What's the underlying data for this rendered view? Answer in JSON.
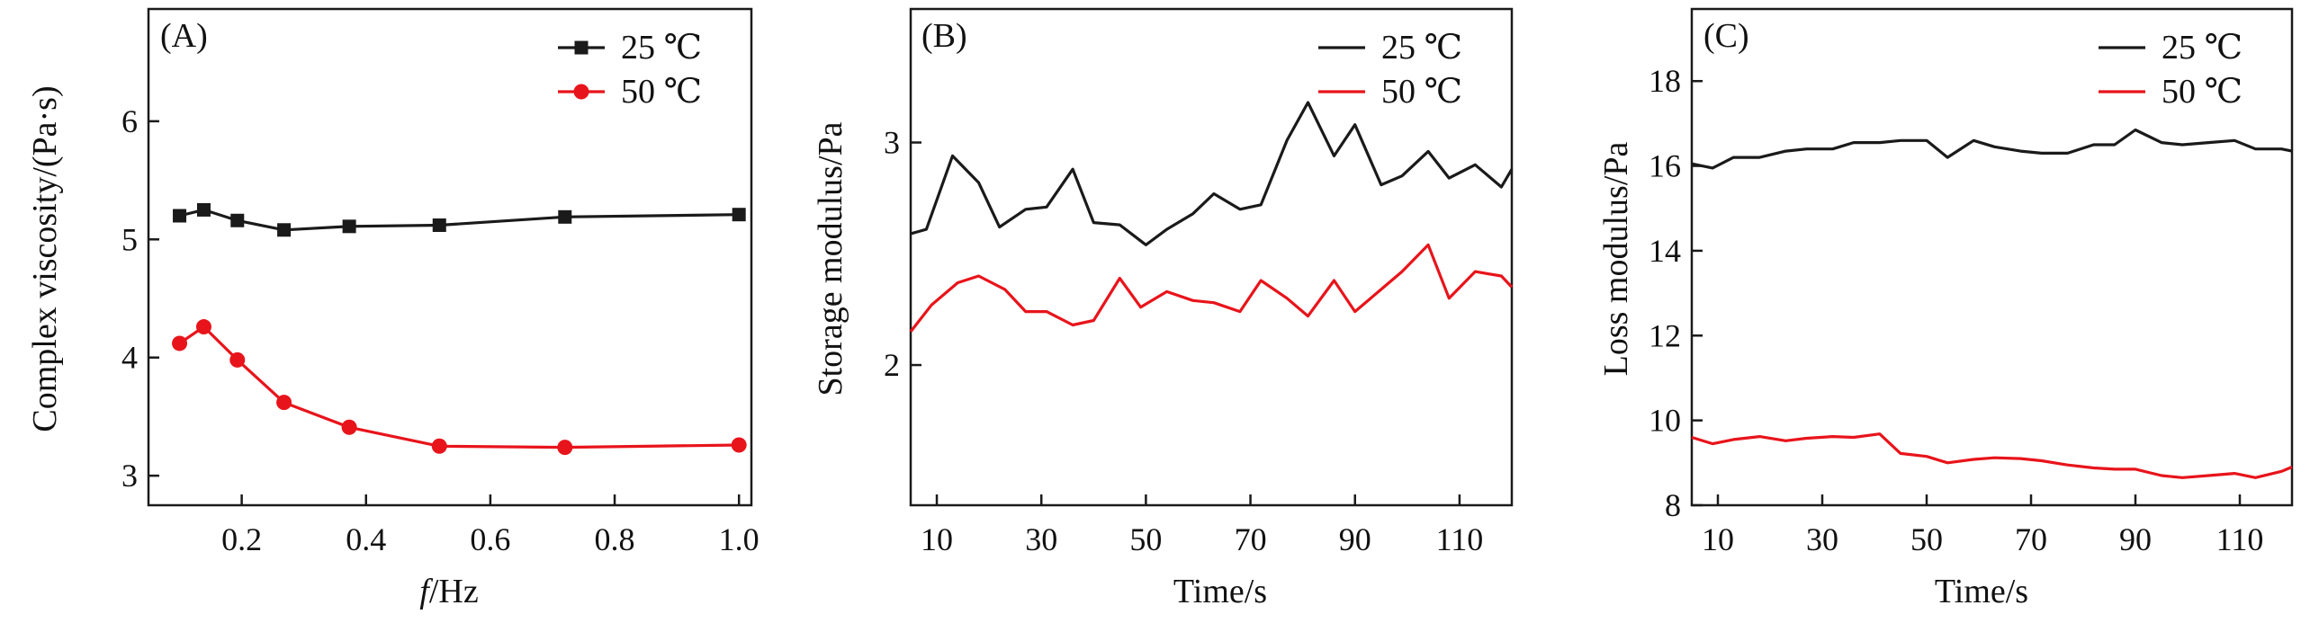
{
  "chart_data": [
    {
      "type": "line",
      "panel_label": "(A)",
      "xlabel_italic": "f",
      "xlabel_rest": "/Hz",
      "ylabel": "Complex viscosity/(Pa·s)",
      "xlim": [
        0.05,
        1.02
      ],
      "ylim": [
        2.75,
        6.95
      ],
      "xticks": [
        0.2,
        0.4,
        0.6,
        0.8,
        1.0
      ],
      "xtick_labels": [
        "0.2",
        "0.4",
        "0.6",
        "0.8",
        "1.0"
      ],
      "yticks": [
        3,
        4,
        5,
        6
      ],
      "ytick_labels": [
        "3",
        "4",
        "5",
        "6"
      ],
      "legend_position": "top-right",
      "series": [
        {
          "name": "25 ℃",
          "color": "#1a1a1a",
          "marker": "square",
          "x": [
            0.1,
            0.139,
            0.193,
            0.268,
            0.373,
            0.518,
            0.72,
            1.0
          ],
          "y": [
            5.2,
            5.25,
            5.16,
            5.08,
            5.11,
            5.12,
            5.19,
            5.21
          ]
        },
        {
          "name": "50 ℃",
          "color": "#e8141b",
          "marker": "circle",
          "x": [
            0.1,
            0.139,
            0.193,
            0.268,
            0.373,
            0.518,
            0.72,
            1.0
          ],
          "y": [
            4.12,
            4.26,
            3.98,
            3.62,
            3.41,
            3.25,
            3.24,
            3.26
          ]
        }
      ]
    },
    {
      "type": "line",
      "panel_label": "(B)",
      "xlabel": "Time/s",
      "ylabel": "Storage modulus/Pa",
      "xlim": [
        5,
        120
      ],
      "ylim": [
        1.37,
        3.6
      ],
      "xticks": [
        10,
        30,
        50,
        70,
        90,
        110
      ],
      "xtick_labels": [
        "10",
        "30",
        "50",
        "70",
        "90",
        "110"
      ],
      "yticks": [
        2,
        3
      ],
      "ytick_labels": [
        "2",
        "3"
      ],
      "legend_position": "top-right",
      "series": [
        {
          "name": "25 ℃",
          "color": "#1a1a1a",
          "x": [
            5,
            8,
            13,
            18,
            22,
            27,
            31,
            36,
            40,
            45,
            50,
            54,
            59,
            63,
            68,
            72,
            77,
            81,
            86,
            90,
            95,
            99,
            104,
            108,
            113,
            118,
            120
          ],
          "y": [
            2.59,
            2.61,
            2.94,
            2.82,
            2.62,
            2.7,
            2.71,
            2.88,
            2.64,
            2.63,
            2.54,
            2.61,
            2.68,
            2.77,
            2.7,
            2.72,
            3.01,
            3.18,
            2.94,
            3.08,
            2.81,
            2.85,
            2.96,
            2.84,
            2.9,
            2.8,
            2.88
          ]
        },
        {
          "name": "50 ℃",
          "color": "#e8141b",
          "x": [
            5,
            9,
            14,
            18,
            23,
            27,
            31,
            36,
            40,
            45,
            49,
            54,
            59,
            63,
            68,
            72,
            77,
            81,
            86,
            90,
            95,
            99,
            104,
            108,
            113,
            118,
            120
          ],
          "y": [
            2.15,
            2.27,
            2.37,
            2.4,
            2.34,
            2.24,
            2.24,
            2.18,
            2.2,
            2.39,
            2.26,
            2.33,
            2.29,
            2.28,
            2.24,
            2.38,
            2.3,
            2.22,
            2.38,
            2.24,
            2.34,
            2.42,
            2.54,
            2.3,
            2.42,
            2.4,
            2.35
          ]
        }
      ]
    },
    {
      "type": "line",
      "panel_label": "(C)",
      "xlabel": "Time/s",
      "ylabel": "Loss modulus/Pa",
      "xlim": [
        5,
        120
      ],
      "ylim": [
        8,
        19.7
      ],
      "xticks": [
        10,
        30,
        50,
        70,
        90,
        110
      ],
      "xtick_labels": [
        "10",
        "30",
        "50",
        "70",
        "90",
        "110"
      ],
      "yticks": [
        8,
        10,
        12,
        14,
        16,
        18
      ],
      "ytick_labels": [
        "8",
        "10",
        "12",
        "14",
        "16",
        "18"
      ],
      "legend_position": "top-right",
      "series": [
        {
          "name": "25 ℃",
          "color": "#1a1a1a",
          "x": [
            5,
            9,
            13,
            18,
            23,
            27,
            32,
            36,
            41,
            45,
            50,
            54,
            59,
            63,
            68,
            72,
            77,
            82,
            86,
            90,
            95,
            99,
            104,
            109,
            113,
            118,
            120
          ],
          "y": [
            16.05,
            15.95,
            16.2,
            16.2,
            16.35,
            16.4,
            16.4,
            16.55,
            16.55,
            16.6,
            16.6,
            16.2,
            16.6,
            16.45,
            16.35,
            16.3,
            16.3,
            16.5,
            16.5,
            16.85,
            16.55,
            16.5,
            16.55,
            16.6,
            16.4,
            16.4,
            16.35
          ]
        },
        {
          "name": "50 ℃",
          "color": "#e8141b",
          "x": [
            5,
            9,
            13,
            18,
            23,
            27,
            32,
            36,
            41,
            45,
            50,
            54,
            59,
            63,
            68,
            72,
            77,
            82,
            86,
            90,
            95,
            99,
            104,
            109,
            113,
            118,
            120
          ],
          "y": [
            9.6,
            9.45,
            9.55,
            9.62,
            9.52,
            9.58,
            9.62,
            9.6,
            9.68,
            9.22,
            9.15,
            9.0,
            9.08,
            9.12,
            9.1,
            9.05,
            8.95,
            8.88,
            8.85,
            8.85,
            8.7,
            8.65,
            8.7,
            8.75,
            8.65,
            8.8,
            8.9
          ]
        }
      ]
    }
  ]
}
